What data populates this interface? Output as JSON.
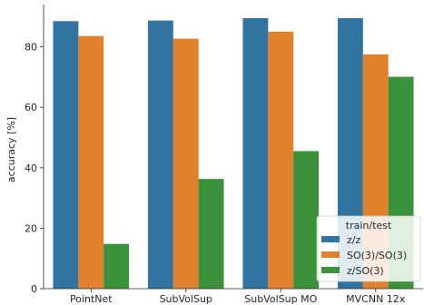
{
  "chart_data": {
    "type": "bar",
    "categories": [
      "PointNet",
      "SubVolSup",
      "SubVolSup MO",
      "MVCNN 12x"
    ],
    "series": [
      {
        "name": "z/z",
        "color": "#3274a1",
        "values": [
          88.5,
          88.7,
          89.5,
          89.5
        ]
      },
      {
        "name": "SO(3)/SO(3)",
        "color": "#e1812c",
        "values": [
          83.6,
          82.7,
          85.0,
          77.5
        ]
      },
      {
        "name": "z/SO(3)",
        "color": "#3a923a",
        "values": [
          14.8,
          36.3,
          45.5,
          70.1
        ]
      }
    ],
    "ylabel": "accuracy [%]",
    "xlabel": "",
    "ylim": [
      0,
      94
    ],
    "yticks": [
      0,
      20,
      40,
      60,
      80
    ],
    "tick_suffix": "",
    "grid": false,
    "legend": {
      "title": "train/test",
      "placement": "lower-right"
    }
  }
}
